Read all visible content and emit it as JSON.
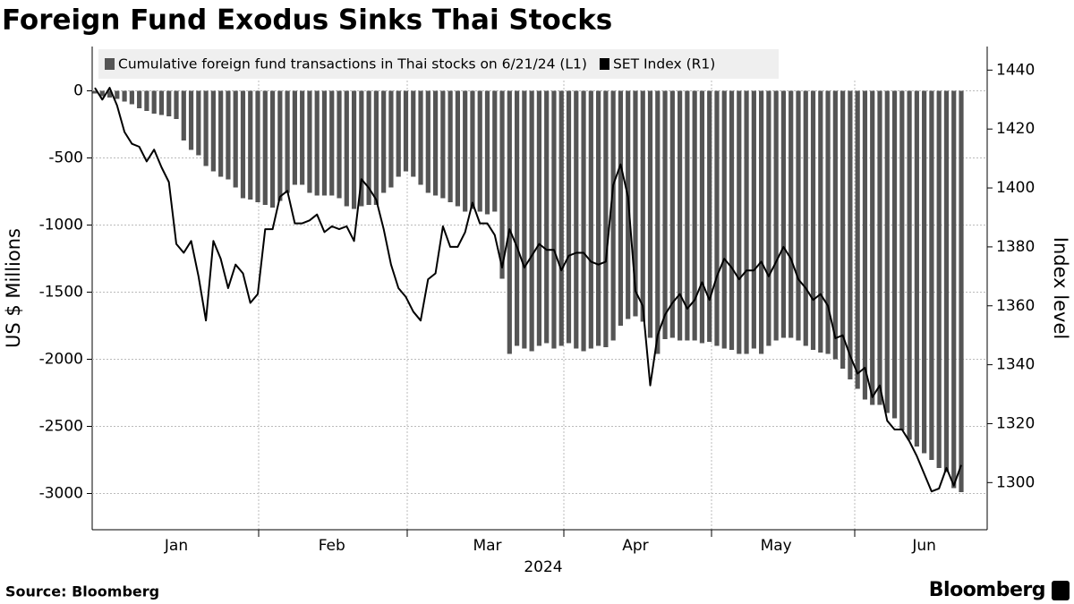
{
  "chart_data": {
    "type": "combo",
    "title": "Foreign Fund Exodus Sinks Thai Stocks",
    "xlabel": "2024",
    "ylabel": "US $ Millions",
    "y2label": "Index level",
    "source": "Source: Bloomberg",
    "brand": "Bloomberg",
    "categories": [
      null,
      null,
      null,
      null,
      null,
      null,
      null,
      null,
      null,
      null,
      null,
      "Jan",
      null,
      null,
      null,
      null,
      null,
      null,
      null,
      null,
      null,
      null,
      null,
      null,
      null,
      null,
      null,
      null,
      null,
      null,
      null,
      null,
      "Feb",
      null,
      null,
      null,
      null,
      null,
      null,
      null,
      null,
      null,
      null,
      null,
      null,
      null,
      null,
      null,
      null,
      null,
      null,
      null,
      null,
      "Mar",
      null,
      null,
      null,
      null,
      null,
      null,
      null,
      null,
      null,
      null,
      null,
      null,
      null,
      null,
      null,
      null,
      null,
      null,
      null,
      "Apr",
      null,
      null,
      null,
      null,
      null,
      null,
      null,
      null,
      null,
      null,
      null,
      null,
      null,
      null,
      null,
      null,
      null,
      null,
      "May",
      null,
      null,
      null,
      null,
      null,
      null,
      null,
      null,
      null,
      null,
      null,
      null,
      null,
      null,
      null,
      null,
      null,
      null,
      null,
      "Jun",
      null,
      null,
      null,
      null,
      null
    ],
    "series": [
      {
        "name": "Cumulative foreign fund transactions in Thai stocks on 6/21/24 (L1)",
        "type": "bar",
        "color": "#555555",
        "values": [
          -20,
          -40,
          -50,
          -60,
          -80,
          -100,
          -130,
          -150,
          -170,
          -180,
          -190,
          -210,
          -370,
          -440,
          -480,
          -560,
          -600,
          -640,
          -660,
          -720,
          -800,
          -810,
          -830,
          -850,
          -870,
          -820,
          -760,
          -700,
          -700,
          -760,
          -780,
          -780,
          -780,
          -800,
          -860,
          -880,
          -860,
          -850,
          -850,
          -760,
          -720,
          -640,
          -600,
          -640,
          -700,
          -760,
          -780,
          -800,
          -830,
          -860,
          -900,
          -880,
          -900,
          -920,
          -900,
          -1400,
          -1960,
          -1900,
          -1920,
          -1940,
          -1900,
          -1880,
          -1920,
          -1900,
          -1880,
          -1920,
          -1940,
          -1920,
          -1900,
          -1910,
          -1860,
          -1750,
          -1700,
          -1680,
          -1720,
          -1840,
          -1960,
          -1850,
          -1840,
          -1860,
          -1860,
          -1860,
          -1880,
          -1870,
          -1900,
          -1920,
          -1930,
          -1960,
          -1960,
          -1920,
          -1960,
          -1900,
          -1860,
          -1840,
          -1840,
          -1860,
          -1900,
          -1930,
          -1950,
          -1960,
          -2000,
          -2070,
          -2150,
          -2220,
          -2300,
          -2340,
          -2340,
          -2400,
          -2440,
          -2530,
          -2600,
          -2650,
          -2700,
          -2750,
          -2810,
          -2840,
          -2960,
          -2990
        ]
      },
      {
        "name": "SET Index (R1)",
        "type": "line",
        "axis": "y2",
        "color": "#000000",
        "values": [
          1434,
          1430,
          1434,
          1428,
          1419,
          1415,
          1414,
          1409,
          1413,
          1407,
          1402,
          1381,
          1378,
          1382,
          1370,
          1355,
          1382,
          1376,
          1366,
          1374,
          1371,
          1361,
          1364,
          1386,
          1386,
          1397,
          1399,
          1388,
          1388,
          1389,
          1391,
          1385,
          1387,
          1386,
          1387,
          1382,
          1403,
          1400,
          1396,
          1386,
          1374,
          1366,
          1363,
          1358,
          1355,
          1369,
          1371,
          1387,
          1380,
          1380,
          1385,
          1395,
          1388,
          1388,
          1384,
          1373,
          1386,
          1380,
          1373,
          1377,
          1381,
          1379,
          1379,
          1372,
          1377,
          1378,
          1378,
          1375,
          1374,
          1375,
          1401,
          1408,
          1397,
          1365,
          1360,
          1333,
          1350,
          1357,
          1361,
          1364,
          1359,
          1362,
          1368,
          1362,
          1370,
          1376,
          1373,
          1369,
          1372,
          1372,
          1375,
          1370,
          1375,
          1380,
          1376,
          1369,
          1366,
          1362,
          1364,
          1360,
          1349,
          1350,
          1343,
          1337,
          1339,
          1329,
          1333,
          1321,
          1318,
          1318,
          1314,
          1309,
          1303,
          1297,
          1298,
          1305,
          1299,
          1306
        ]
      }
    ],
    "ylim": [
      -3270,
      330
    ],
    "yticks": [
      0,
      -500,
      -1000,
      -1500,
      -2000,
      -2500,
      -3000
    ],
    "y2lim": [
      1284,
      1448
    ],
    "y2ticks": [
      1300,
      1320,
      1340,
      1360,
      1380,
      1400,
      1420,
      1440
    ],
    "grid": true,
    "legend": "top"
  }
}
